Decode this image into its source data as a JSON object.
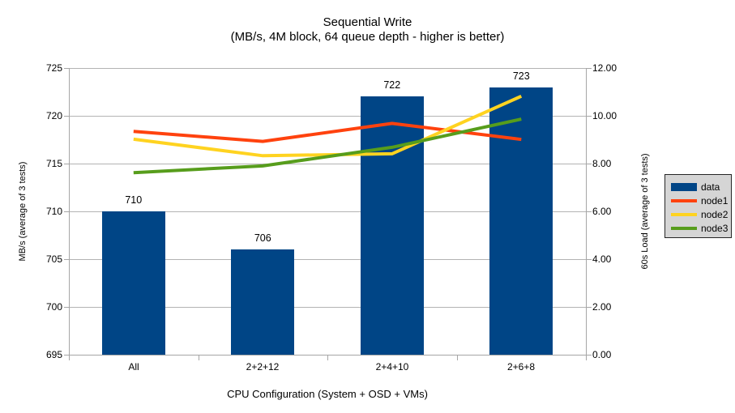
{
  "chart_data": {
    "type": "bar+line",
    "title": "Sequential Write",
    "subtitle": "(MB/s, 4M block, 64 queue depth - higher is better)",
    "xlabel": "CPU Configuration (System + OSD + VMs)",
    "ylabel_left": "MB/s (average of 3 tests)",
    "ylabel_right": "60s Load (average of 3 tests)",
    "categories": [
      "All",
      "2+2+12",
      "2+4+10",
      "2+6+8"
    ],
    "axis_left": {
      "min": 695,
      "max": 725,
      "step": 5,
      "decimals": 0
    },
    "axis_right": {
      "min": 0,
      "max": 12,
      "step": 2,
      "decimals": 2
    },
    "grid": "horizontal",
    "legend_position": "right",
    "series": [
      {
        "name": "data",
        "type": "bar",
        "axis": "left",
        "color": "#004586",
        "values": [
          710,
          706,
          722,
          723
        ],
        "data_labels": true
      },
      {
        "name": "node1",
        "type": "line",
        "axis": "right",
        "color": "#FF420E",
        "values": [
          9.35,
          8.93,
          9.68,
          9.01
        ]
      },
      {
        "name": "node2",
        "type": "line",
        "axis": "right",
        "color": "#FFD320",
        "values": [
          9.02,
          8.33,
          8.41,
          10.82
        ]
      },
      {
        "name": "node3",
        "type": "line",
        "axis": "right",
        "color": "#579D1C",
        "values": [
          7.62,
          7.9,
          8.68,
          9.86
        ]
      }
    ],
    "colors": {
      "background": "#ffffff",
      "text": "#000000",
      "grid": "#b3b3b3",
      "axis": "#a6a6a6",
      "legend_bg": "#d5d5d5",
      "legend_border": "#262626"
    }
  }
}
